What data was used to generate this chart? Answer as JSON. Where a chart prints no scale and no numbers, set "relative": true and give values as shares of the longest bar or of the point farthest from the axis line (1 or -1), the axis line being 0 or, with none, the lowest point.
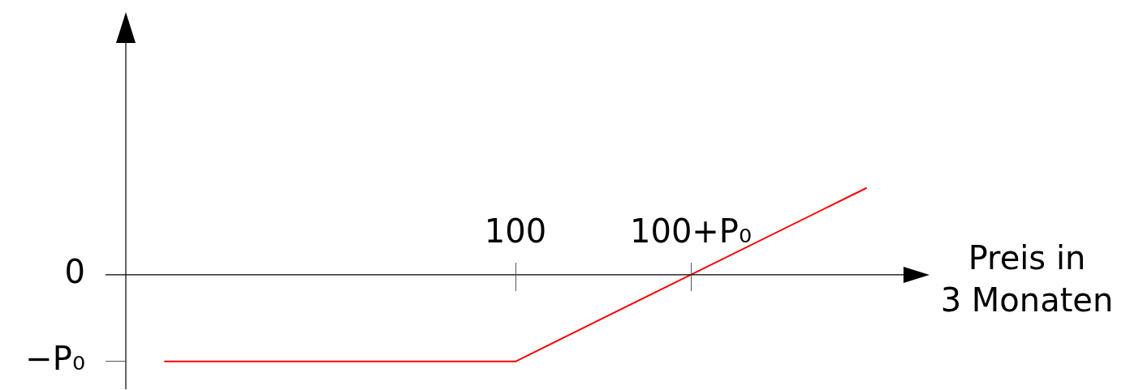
{
  "chart_data": {
    "type": "line",
    "xlabel": "Preis in\n3 Monaten",
    "relative": true,
    "categories": [
      null,
      null,
      "100",
      "100+P₀",
      null
    ],
    "series": [
      {
        "color": "#ff0000",
        "values": [
          -1,
          -1,
          -1,
          0,
          1
        ]
      }
    ],
    "annotations": [
      "0",
      "−P₀"
    ],
    "legend": false,
    "marker": "none",
    "line_style": "solid"
  }
}
